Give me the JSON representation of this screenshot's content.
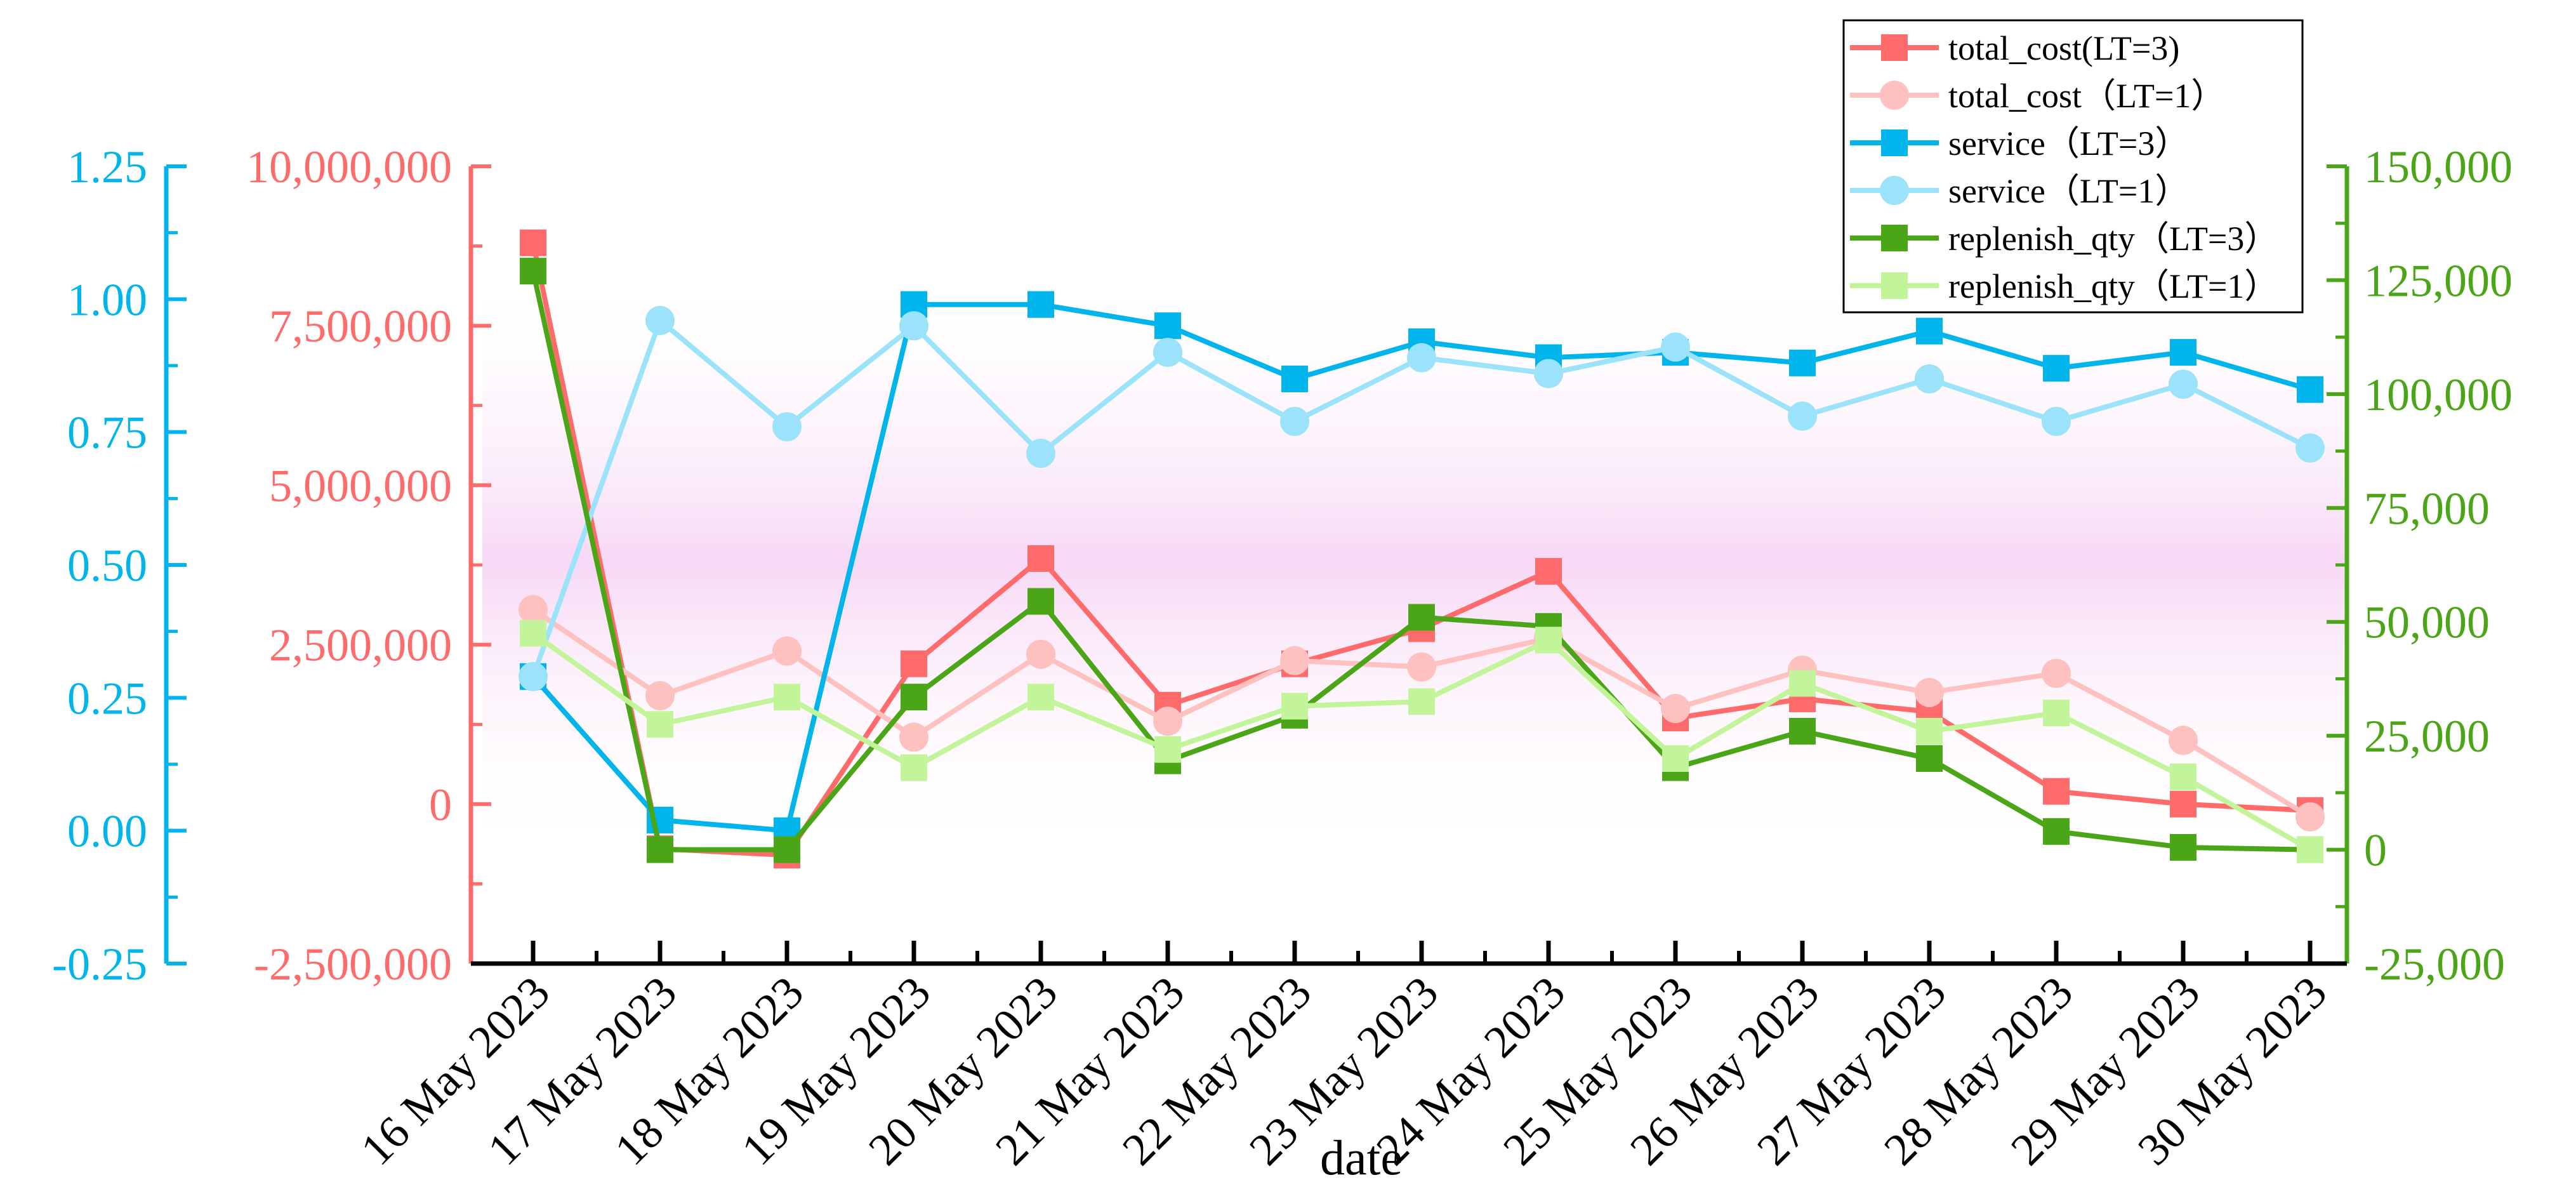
{
  "chart_data": {
    "type": "line",
    "title": "",
    "xlabel": "date",
    "categories": [
      "16 May 2023",
      "17 May 2023",
      "18 May 2023",
      "19 May 2023",
      "20 May 2023",
      "21 May 2023",
      "22 May 2023",
      "23 May 2023",
      "24 May 2023",
      "25 May 2023",
      "26 May 2023",
      "27 May 2023",
      "28 May 2023",
      "29 May 2023",
      "30 May 2023"
    ],
    "axes": [
      {
        "id": "service",
        "side": "left-outer",
        "color": "#00b5ec",
        "ylim": [
          -0.25,
          1.25
        ],
        "ticks": [
          -0.25,
          0,
          0.25,
          0.5,
          0.75,
          1.0,
          1.25
        ],
        "tick_labels": [
          "-0.25",
          "0.00",
          "0.25",
          "0.50",
          "0.75",
          "1.00",
          "1.25"
        ]
      },
      {
        "id": "cost",
        "side": "left-inner",
        "color": "#ff6b6b",
        "ylim": [
          -2500000,
          10000000
        ],
        "ticks": [
          -2500000,
          0,
          2500000,
          5000000,
          7500000,
          10000000
        ],
        "tick_labels": [
          "-2,500,000",
          "0",
          "2,500,000",
          "5,000,000",
          "7,500,000",
          "10,000,000"
        ]
      },
      {
        "id": "qty",
        "side": "right",
        "color": "#4aa617",
        "ylim": [
          -25000,
          150000
        ],
        "ticks": [
          -25000,
          0,
          25000,
          50000,
          75000,
          100000,
          125000,
          150000
        ],
        "tick_labels": [
          "-25,000",
          "0",
          "25,000",
          "50,000",
          "75,000",
          "100,000",
          "125,000",
          "150,000"
        ]
      }
    ],
    "series": [
      {
        "name": "total_cost(LT=3)",
        "axis": "cost",
        "marker": "square",
        "color": "#ff6b6b",
        "values": [
          8800000,
          -700000,
          -800000,
          2200000,
          3850000,
          1550000,
          2200000,
          2750000,
          3650000,
          1350000,
          1650000,
          1450000,
          200000,
          0,
          -100000
        ]
      },
      {
        "name": "total_cost（LT=1）",
        "axis": "cost",
        "marker": "circle",
        "color": "#ffc0c0",
        "values": [
          3050000,
          1700000,
          2400000,
          1050000,
          2350000,
          1300000,
          2250000,
          2150000,
          2600000,
          1500000,
          2100000,
          1750000,
          2050000,
          1000000,
          -200000
        ]
      },
      {
        "name": "service（LT=3）",
        "axis": "service",
        "marker": "square",
        "color": "#00b5ec",
        "values": [
          0.29,
          0.02,
          0.0,
          0.99,
          0.99,
          0.95,
          0.85,
          0.92,
          0.89,
          0.9,
          0.88,
          0.94,
          0.87,
          0.9,
          0.83
        ]
      },
      {
        "name": "service（LT=1）",
        "axis": "service",
        "marker": "circle",
        "color": "#9be3fb",
        "values": [
          0.29,
          0.96,
          0.76,
          0.95,
          0.71,
          0.9,
          0.77,
          0.89,
          0.86,
          0.91,
          0.78,
          0.85,
          0.77,
          0.84,
          0.72
        ]
      },
      {
        "name": "replenish_qty（LT=3）",
        "axis": "qty",
        "marker": "square",
        "color": "#4aa617",
        "values": [
          127000,
          0,
          0,
          33500,
          54500,
          19500,
          29500,
          51000,
          49000,
          18000,
          26000,
          20000,
          4000,
          500,
          0
        ]
      },
      {
        "name": "replenish_qty（LT=1）",
        "axis": "qty",
        "marker": "square",
        "color": "#c2f59a",
        "values": [
          47500,
          27500,
          33500,
          18000,
          33500,
          22000,
          31500,
          32500,
          46000,
          20000,
          36500,
          26000,
          30000,
          16000,
          0
        ]
      }
    ],
    "legend": {
      "position": "top-right"
    },
    "background": {
      "gradient_color": "#f7d8f5"
    }
  }
}
